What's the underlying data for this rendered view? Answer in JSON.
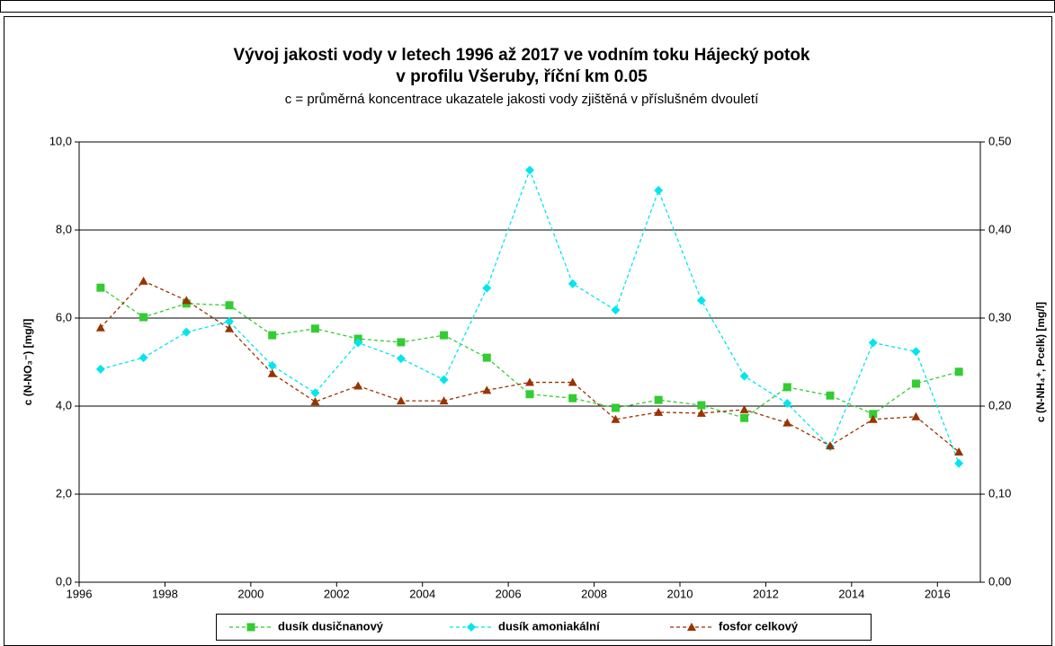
{
  "chart_data": {
    "type": "line",
    "title": "Vývoj jakosti vody v letech 1996 až 2017 ve vodním toku Hájecký potok",
    "title_line2": "v profilu Všeruby, říční km 0.05",
    "subtitle": "c = průměrná koncentrace ukazatele jakosti vody zjištěná v příslušném dvouletí",
    "y_label": "c (N-NO₃⁻) [mg/l]",
    "y2_label": "c (N-NH₄⁺, Pcelk) [mg/l]",
    "x": [
      1996.5,
      1997.5,
      1998.5,
      1999.5,
      2000.5,
      2001.5,
      2002.5,
      2003.5,
      2004.5,
      2005.5,
      2006.5,
      2007.5,
      2008.5,
      2009.5,
      2010.5,
      2011.5,
      2012.5,
      2013.5,
      2014.5,
      2015.5,
      2016.5
    ],
    "xlim": [
      1996,
      2017
    ],
    "xticks": [
      1996,
      1998,
      2000,
      2002,
      2004,
      2006,
      2008,
      2010,
      2012,
      2014,
      2016
    ],
    "ylim": [
      0,
      10
    ],
    "yticks": [
      {
        "value": 0,
        "label": "0,0"
      },
      {
        "value": 2,
        "label": "2,0"
      },
      {
        "value": 4,
        "label": "4,0"
      },
      {
        "value": 6,
        "label": "6,0"
      },
      {
        "value": 8,
        "label": "8,0"
      },
      {
        "value": 10,
        "label": "10,0"
      }
    ],
    "y2lim": [
      0,
      0.5
    ],
    "y2ticks": [
      {
        "value": 0,
        "label": "0,00"
      },
      {
        "value": 0.1,
        "label": "0,10"
      },
      {
        "value": 0.2,
        "label": "0,20"
      },
      {
        "value": 0.3,
        "label": "0,30"
      },
      {
        "value": 0.4,
        "label": "0,40"
      },
      {
        "value": 0.5,
        "label": "0,50"
      }
    ],
    "grid": true,
    "legend": "bottom",
    "series": [
      {
        "name": "dusík dusičnanový",
        "color": "#33cc33",
        "marker": "square",
        "values": [
          6.69,
          6.02,
          6.33,
          6.29,
          5.61,
          5.76,
          5.53,
          5.45,
          5.61,
          5.1,
          4.27,
          4.18,
          3.96,
          4.14,
          4.02,
          3.73,
          4.43,
          4.24,
          3.82,
          4.51,
          4.78
        ]
      },
      {
        "name": "dusík amoniakální",
        "color": "#00e5ee",
        "marker": "diamond",
        "axis": "y2",
        "values": [
          0.242,
          0.255,
          0.284,
          0.296,
          0.246,
          0.215,
          0.272,
          0.254,
          0.23,
          0.334,
          0.468,
          0.339,
          0.309,
          0.445,
          0.32,
          0.234,
          0.203,
          0.154,
          0.272,
          0.262,
          0.135
        ]
      },
      {
        "name": "fosfor celkový",
        "color": "#993300",
        "marker": "triangle",
        "axis": "y2",
        "values": [
          0.289,
          0.342,
          0.32,
          0.288,
          0.237,
          0.205,
          0.223,
          0.206,
          0.206,
          0.218,
          0.227,
          0.227,
          0.185,
          0.193,
          0.192,
          0.196,
          0.181,
          0.155,
          0.185,
          0.188,
          0.148
        ]
      }
    ]
  }
}
